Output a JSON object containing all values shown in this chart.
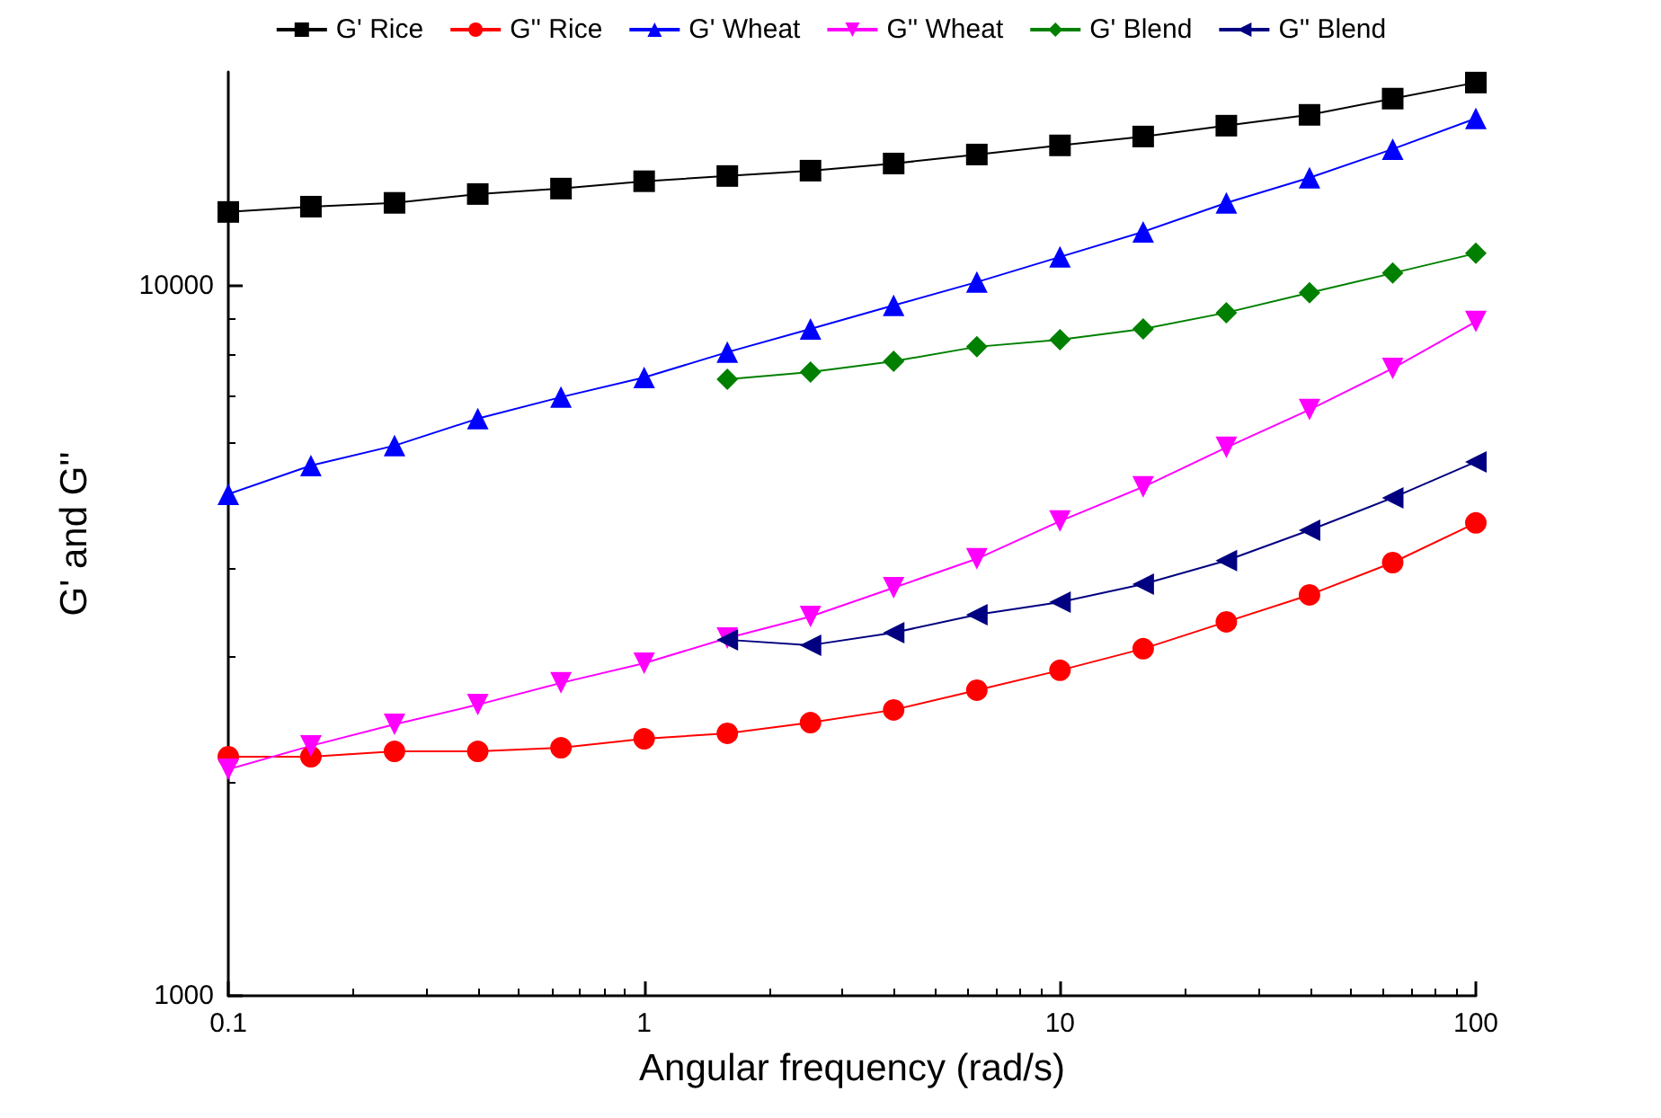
{
  "chart_data": {
    "type": "line",
    "xlabel": "Angular frequency (rad/s)",
    "ylabel": "G' and G''",
    "log": "xy",
    "xlim": [
      0.1,
      100
    ],
    "xticks": [
      0.1,
      1,
      10,
      100
    ],
    "ylim": [
      1000,
      20000
    ],
    "yticks": [
      1000,
      10000
    ],
    "grid": false,
    "legend": "top",
    "line_style": "solid",
    "x": [
      0.1,
      0.158,
      0.251,
      0.398,
      0.631,
      1,
      1.585,
      2.512,
      3.981,
      6.31,
      10,
      15.85,
      25.12,
      39.81,
      63.1,
      100
    ],
    "series": [
      {
        "name": "G' Rice",
        "color": "#000000",
        "marker": "square",
        "values": [
          12700,
          12920,
          13080,
          13460,
          13700,
          14030,
          14270,
          14520,
          14860,
          15300,
          15760,
          16220,
          16800,
          17400,
          18340,
          19320
        ]
      },
      {
        "name": "G'' Rice",
        "color": "#ff0000",
        "marker": "circle",
        "values": [
          2171,
          2171,
          2209,
          2209,
          2235,
          2301,
          2342,
          2425,
          2527,
          2694,
          2873,
          3081,
          3362,
          3669,
          4074,
          4633
        ]
      },
      {
        "name": "G' Wheat",
        "color": "#0000ff",
        "marker": "triangle",
        "values": [
          5085,
          5580,
          5953,
          6497,
          6967,
          7425,
          8060,
          8693,
          9380,
          10117,
          10977,
          11910,
          13080,
          14190,
          15570,
          17200
        ]
      },
      {
        "name": "G'' Wheat",
        "color": "#ff00ff",
        "marker": "triangle-down",
        "values": [
          2084,
          2249,
          2411,
          2570,
          2758,
          2940,
          3190,
          3421,
          3755,
          4124,
          4661,
          5207,
          5918,
          6689,
          7646,
          8900
        ]
      },
      {
        "name": "G' Blend",
        "color": "#008000",
        "marker": "diamond",
        "values": [
          null,
          null,
          null,
          null,
          null,
          null,
          7383,
          7556,
          7826,
          8202,
          8395,
          8693,
          9162,
          9770,
          10416,
          11106
        ]
      },
      {
        "name": "G'' Blend",
        "color": "#000080",
        "marker": "triangle-left",
        "values": [
          null,
          null,
          null,
          null,
          null,
          null,
          3172,
          3117,
          3246,
          3440,
          3584,
          3799,
          4101,
          4525,
          5026,
          5648
        ]
      }
    ]
  }
}
